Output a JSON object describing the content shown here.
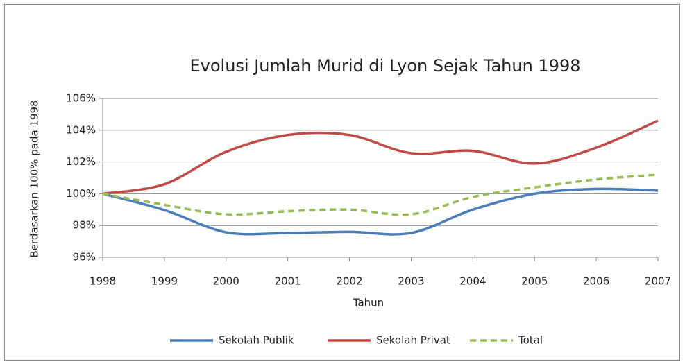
{
  "chart_data": {
    "type": "line",
    "title": "Evolusi Jumlah Murid di Lyon Sejak Tahun 1998",
    "x_label": "Tahun",
    "y_label": "Berdasarkan 100% pada 1998",
    "x": [
      1998,
      1999,
      2000,
      2001,
      2002,
      2003,
      2004,
      2005,
      2006,
      2007
    ],
    "xlim": [
      1998,
      2007
    ],
    "xticks": [
      1998,
      1999,
      2000,
      2001,
      2002,
      2003,
      2004,
      2005,
      2006,
      2007
    ],
    "ylim": [
      96,
      106
    ],
    "yticks": [
      {
        "value": 96,
        "label": "96%"
      },
      {
        "value": 98,
        "label": "98%"
      },
      {
        "value": 100,
        "label": "100%"
      },
      {
        "value": 102,
        "label": "102%"
      },
      {
        "value": 104,
        "label": "104%"
      },
      {
        "value": 106,
        "label": "106%"
      }
    ],
    "grid": true,
    "legend": "bottom",
    "series": [
      {
        "name": "Sekolah Publik",
        "color": "#4a7ebb",
        "dashed": false,
        "values": [
          100,
          98.97,
          97.57,
          97.53,
          97.6,
          97.53,
          99.0,
          100.0,
          100.3,
          100.2
        ]
      },
      {
        "name": "Sekolah Privat",
        "color": "#be4b48",
        "dashed": false,
        "values": [
          100,
          100.6,
          102.64,
          103.7,
          103.7,
          102.55,
          102.7,
          101.9,
          102.9,
          104.6
        ]
      },
      {
        "name": "Total",
        "color": "#98b954",
        "dashed": true,
        "values": [
          100,
          99.3,
          98.7,
          98.9,
          99.0,
          98.7,
          99.8,
          100.4,
          100.9,
          101.2
        ]
      }
    ]
  }
}
